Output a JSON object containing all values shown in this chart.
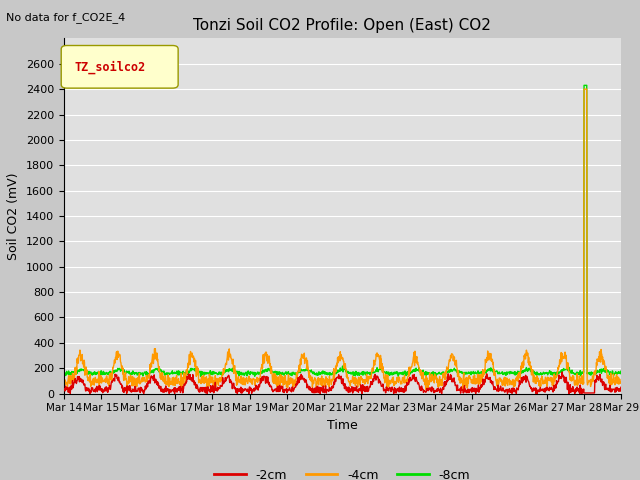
{
  "title": "Tonzi Soil CO2 Profile: Open (East) CO2",
  "subtitle": "No data for f_CO2E_4",
  "ylabel": "Soil CO2 (mV)",
  "xlabel": "Time",
  "legend_label": "TZ_soilco2",
  "legend_colors": {
    "-2cm": "#dd0000",
    "-4cm": "#ff9900",
    "-8cm": "#00dd00"
  },
  "ylim": [
    0,
    2800
  ],
  "yticks": [
    0,
    200,
    400,
    600,
    800,
    1000,
    1200,
    1400,
    1600,
    1800,
    2000,
    2200,
    2400,
    2600
  ],
  "fig_bg": "#c8c8c8",
  "plot_bg": "#e0e0e0",
  "grid_color": "#ffffff",
  "num_days": 15,
  "start_day": 14,
  "end_day": 29,
  "spike_day_idx": 14,
  "spike_value_orange": 2400,
  "spike_value_green": 2430,
  "base_red": 30,
  "base_orange": 100,
  "base_green": 160,
  "amp_red": 100,
  "amp_orange": 200,
  "amp_green": 30,
  "line_width": 1.0
}
